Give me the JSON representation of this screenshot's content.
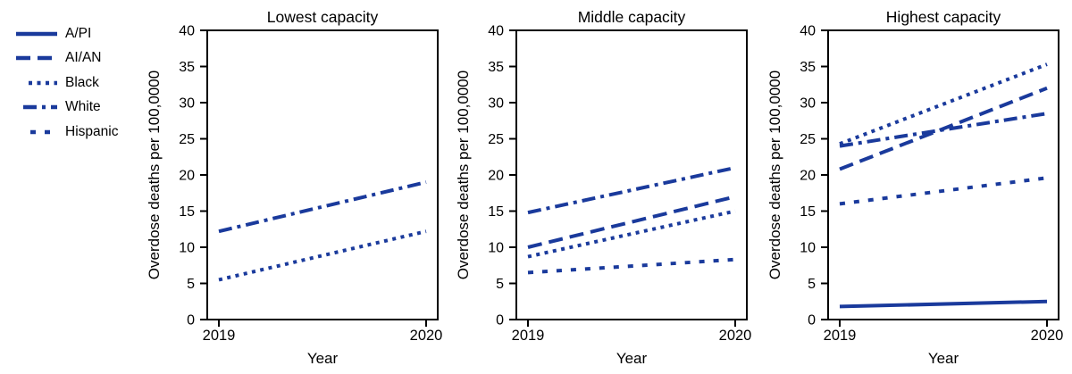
{
  "figure": {
    "background": "#ffffff",
    "line_color": "#1a3a9c",
    "axis_color": "#000000",
    "text_color": "#000000"
  },
  "legend": {
    "position": "outside-left",
    "items": [
      {
        "label": "A/PI",
        "style": "solid"
      },
      {
        "label": "AI/AN",
        "style": "long-dash"
      },
      {
        "label": "Black",
        "style": "dotted"
      },
      {
        "label": "White",
        "style": "dash-dot"
      },
      {
        "label": "Hispanic",
        "style": "short-dash"
      }
    ]
  },
  "chart_data": [
    {
      "type": "line",
      "title": "Lowest capacity",
      "xlabel": "Year",
      "ylabel": "Overdose deaths per 100,0000",
      "x": [
        "2019",
        "2020"
      ],
      "ylim": [
        0,
        40
      ],
      "yticks": [
        0,
        5,
        10,
        15,
        20,
        25,
        30,
        35,
        40
      ],
      "grid": false,
      "series": [
        {
          "name": "White",
          "style": "dash-dot",
          "values": [
            12.2,
            19.0
          ]
        },
        {
          "name": "Black",
          "style": "dotted",
          "values": [
            5.5,
            12.2
          ]
        }
      ]
    },
    {
      "type": "line",
      "title": "Middle capacity",
      "xlabel": "Year",
      "ylabel": "Overdose deaths per 100,0000",
      "x": [
        "2019",
        "2020"
      ],
      "ylim": [
        0,
        40
      ],
      "yticks": [
        0,
        5,
        10,
        15,
        20,
        25,
        30,
        35,
        40
      ],
      "grid": false,
      "series": [
        {
          "name": "White",
          "style": "dash-dot",
          "values": [
            14.8,
            21.0
          ]
        },
        {
          "name": "AI/AN",
          "style": "long-dash",
          "values": [
            10.0,
            17.0
          ]
        },
        {
          "name": "Black",
          "style": "dotted",
          "values": [
            8.7,
            15.0
          ]
        },
        {
          "name": "Hispanic",
          "style": "short-dash",
          "values": [
            6.5,
            8.3
          ]
        }
      ]
    },
    {
      "type": "line",
      "title": "Highest capacity",
      "xlabel": "Year",
      "ylabel": "Overdose deaths per 100,0000",
      "x": [
        "2019",
        "2020"
      ],
      "ylim": [
        0,
        40
      ],
      "yticks": [
        0,
        5,
        10,
        15,
        20,
        25,
        30,
        35,
        40
      ],
      "grid": false,
      "series": [
        {
          "name": "White",
          "style": "dash-dot",
          "values": [
            24.0,
            28.5
          ]
        },
        {
          "name": "Hispanic",
          "style": "short-dash",
          "values": [
            16.0,
            19.6
          ]
        },
        {
          "name": "AI/AN",
          "style": "long-dash",
          "values": [
            20.8,
            32.0
          ]
        },
        {
          "name": "Black",
          "style": "dotted",
          "values": [
            24.3,
            35.3
          ]
        },
        {
          "name": "A/PI",
          "style": "solid",
          "values": [
            1.8,
            2.5
          ]
        }
      ]
    }
  ]
}
